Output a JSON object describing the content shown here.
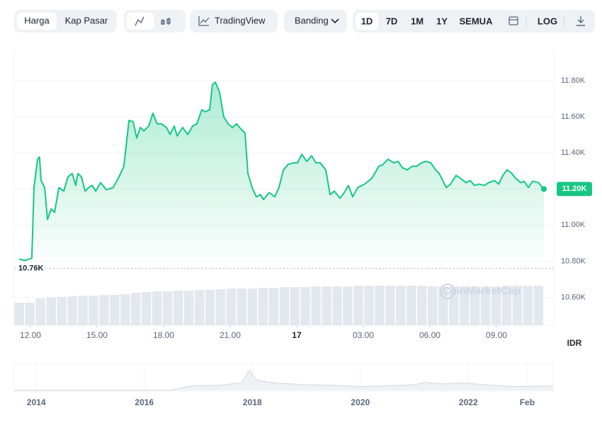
{
  "toolbar": {
    "view_tabs": [
      "Harga",
      "Kap Pasar"
    ],
    "tradingview": "TradingView",
    "compare": "Banding",
    "ranges": [
      "1D",
      "7D",
      "1M",
      "1Y",
      "SEMUA"
    ],
    "log": "LOG"
  },
  "currency": "IDR",
  "watermark": "CoinMarketCap",
  "chart_data": {
    "type": "line",
    "xlim": [
      -0.51,
      23.14
    ],
    "xticks": [
      {
        "value": 0,
        "label": "12.00"
      },
      {
        "value": 3,
        "label": "15.00"
      },
      {
        "value": 6,
        "label": "18.00"
      },
      {
        "value": 9,
        "label": "21.00"
      },
      {
        "value": 12,
        "label": "17"
      },
      {
        "value": 15,
        "label": "03.00"
      },
      {
        "value": 18,
        "label": "06.00"
      },
      {
        "value": 21,
        "label": "09.00"
      }
    ],
    "ylim": [
      10445,
      11965
    ],
    "yticks": [
      {
        "value": 10600,
        "label": "10.60K"
      },
      {
        "value": 10800,
        "label": "10.80K"
      },
      {
        "value": 11000,
        "label": "11.00K"
      },
      {
        "value": 11200,
        "label": "11.20K"
      },
      {
        "value": 11400,
        "label": "11.40K"
      },
      {
        "value": 11600,
        "label": "11.60K"
      },
      {
        "value": 11800,
        "label": "11.80K"
      }
    ],
    "grid": true,
    "series": [
      {
        "name": "Harga",
        "color": "#16c784",
        "x": [
          -0.51,
          -0.26,
          0.06,
          0.16,
          0.32,
          0.41,
          0.48,
          0.64,
          0.77,
          0.93,
          1.09,
          1.28,
          1.5,
          1.69,
          1.88,
          2.04,
          2.14,
          2.3,
          2.46,
          2.62,
          2.78,
          2.94,
          3.16,
          3.42,
          3.73,
          3.99,
          4.21,
          4.44,
          4.63,
          4.79,
          4.95,
          5.11,
          5.33,
          5.52,
          5.71,
          5.9,
          6.13,
          6.29,
          6.48,
          6.61,
          6.86,
          7.09,
          7.31,
          7.5,
          7.72,
          7.88,
          8.08,
          8.2,
          8.33,
          8.52,
          8.71,
          8.91,
          9.1,
          9.29,
          9.48,
          9.67,
          9.8,
          9.99,
          10.18,
          10.37,
          10.5,
          10.76,
          11.01,
          11.2,
          11.4,
          11.62,
          11.87,
          12.03,
          12.23,
          12.45,
          12.67,
          12.86,
          13.06,
          13.31,
          13.5,
          13.69,
          13.95,
          14.14,
          14.33,
          14.52,
          14.75,
          15.06,
          15.38,
          15.7,
          15.86,
          16.12,
          16.37,
          16.57,
          16.76,
          16.98,
          17.21,
          17.4,
          17.62,
          17.84,
          18.04,
          18.26,
          18.42,
          18.74,
          18.93,
          19.18,
          19.38,
          19.63,
          19.82,
          20.01,
          20.2,
          20.46,
          20.65,
          20.91,
          21.1,
          21.29,
          21.48,
          21.67,
          21.87,
          22.09,
          22.25,
          22.44,
          22.63,
          22.89,
          23.14
        ],
        "values": [
          10812,
          10804,
          10816,
          11208,
          11365,
          11377,
          11247,
          11208,
          11031,
          11090,
          11071,
          11208,
          11188,
          11267,
          11286,
          11220,
          11286,
          11267,
          11188,
          11208,
          11220,
          11188,
          11235,
          11196,
          11208,
          11267,
          11326,
          11580,
          11573,
          11482,
          11541,
          11522,
          11549,
          11620,
          11561,
          11561,
          11541,
          11502,
          11549,
          11494,
          11541,
          11502,
          11549,
          11561,
          11639,
          11628,
          11639,
          11777,
          11792,
          11737,
          11600,
          11561,
          11541,
          11561,
          11533,
          11510,
          11286,
          11208,
          11157,
          11169,
          11141,
          11180,
          11157,
          11208,
          11306,
          11337,
          11345,
          11345,
          11392,
          11353,
          11384,
          11345,
          11345,
          11306,
          11169,
          11188,
          11149,
          11180,
          11220,
          11157,
          11208,
          11227,
          11259,
          11326,
          11333,
          11365,
          11345,
          11353,
          11318,
          11306,
          11326,
          11326,
          11345,
          11353,
          11345,
          11306,
          11286,
          11208,
          11227,
          11275,
          11259,
          11235,
          11247,
          11220,
          11227,
          11220,
          11235,
          11247,
          11227,
          11275,
          11306,
          11290,
          11259,
          11235,
          11243,
          11208,
          11243,
          11235,
          11200
        ]
      }
    ],
    "price_label": {
      "value": 11200,
      "label": "11.20K"
    },
    "baseline": {
      "value": 10760,
      "label": "10.76K"
    },
    "volume_ylim": [
      0,
      100
    ],
    "volume": [
      32,
      32,
      38,
      39,
      40,
      41,
      42,
      42,
      43,
      43,
      44,
      46,
      47,
      48,
      48,
      49,
      49,
      50,
      50,
      51,
      52,
      52,
      52,
      53,
      53,
      54,
      54,
      54,
      55,
      55,
      55,
      55,
      56,
      56,
      56,
      56,
      56,
      56,
      56,
      55,
      55,
      55,
      55,
      55,
      55,
      55,
      56,
      56,
      56,
      56
    ]
  },
  "navigator": {
    "xlim": [
      2013.59,
      2023.57
    ],
    "xticks": [
      2014,
      2016,
      2018,
      2020,
      2022,
      {
        "value": 2023.09,
        "label": "Feb"
      }
    ],
    "ylim": [
      0,
      100
    ],
    "x": [
      2013.59,
      2014.5,
      2015.5,
      2016.5,
      2016.9,
      2017.4,
      2017.8,
      2017.95,
      2018.05,
      2018.2,
      2018.5,
      2019.0,
      2019.5,
      2020.0,
      2020.5,
      2021.0,
      2021.2,
      2021.5,
      2021.9,
      2022.3,
      2022.8,
      2023.2,
      2023.57
    ],
    "values": [
      0,
      0,
      0,
      1,
      18,
      20,
      30,
      80,
      45,
      35,
      28,
      22,
      20,
      15,
      18,
      22,
      32,
      25,
      30,
      22,
      15,
      16,
      17
    ]
  }
}
